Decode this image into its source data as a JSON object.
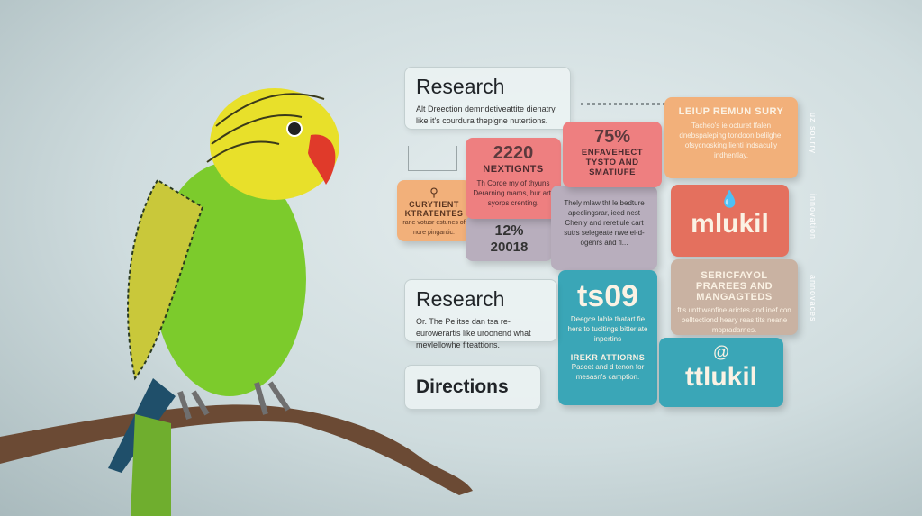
{
  "cards": {
    "research_top": {
      "title": "Research",
      "text": "Alt Dreection demndetiveattite dienatry like it's courdura thepigne nutertions."
    },
    "curytient": {
      "title": "CURYTIENT KTRATENTES",
      "text": "rane votusr estunes of nore pingantic."
    },
    "nextignts": {
      "value": "2220",
      "title": "NEXTIGNTS",
      "text": "Th Corde my of thyuns Derarning mams, hur artr syorps crenting."
    },
    "stat_12": {
      "value": "12%",
      "sub": "20018"
    },
    "stat_75": {
      "value": "75%",
      "title": "ENFAVEHECT TYSTO AND SMATIUFE"
    },
    "purple": {
      "text": "Thely mlaw tht le bedture apeclingsrar, ieed nest Chenly and reretlule cart sutrs selegeate nwe ei-d-ogenrs and fl..."
    },
    "leiup": {
      "title": "LEIUP REMUN SURY",
      "text": "Tacheo's ie octuret ffalen dnebspaleping tondoon belilghe, ofsycnosking lienti indsacully indhentlay."
    },
    "mlukil_red": {
      "label": "mlukil"
    },
    "sericfayol": {
      "title": "SERICFAYOL PRAREES AND MANGAGTEDS",
      "text": "ft's unttiwanfine arictes and inef con belltectiond heary reas tits neane mopradarnes."
    },
    "teal_09": {
      "value": "ts09",
      "text": "Deegce lahle thatart fie hers to tucitings bitterlate inpertins",
      "title": "IREKR ATTIORNS",
      "text2": "Pascet and d tenon for mesasn's camption."
    },
    "mlukil_teal": {
      "label": "ttlukil"
    },
    "research_bottom": {
      "title": "Research",
      "text": "Or. The Pelitse dan tsa re-eurowerartis like uroonend what mevlellowhe fiteattions."
    },
    "directions": {
      "title": "Directions"
    }
  },
  "side_labels": [
    "uz sourry",
    "innovation",
    "annovaces"
  ],
  "colors": {
    "pink": "#ee7f80",
    "orange": "#f2b07a",
    "red": "#e4705e",
    "beige": "#c9b2a2",
    "teal": "#3aa6b7",
    "purple": "#b8aebd",
    "parrot_green": "#7ccb2c",
    "parrot_yellow": "#e8e02a",
    "beak": "#e03a2a"
  }
}
